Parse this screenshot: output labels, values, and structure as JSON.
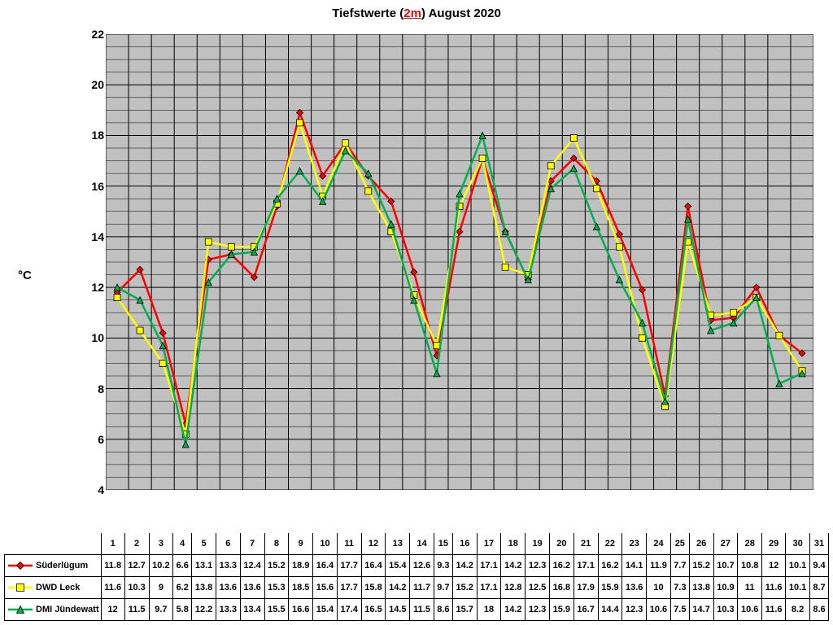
{
  "title_prefix": "Tiefstwerte (",
  "title_highlight": "2m",
  "title_suffix": ") August 2020",
  "ylabel": "°C",
  "ylim": [
    4,
    22
  ],
  "ytick_step": 2,
  "y_minor_per_major": 4,
  "x_categories": [
    "1",
    "2",
    "3",
    "4",
    "5",
    "6",
    "7",
    "8",
    "9",
    "10",
    "11",
    "12",
    "13",
    "14",
    "15",
    "16",
    "17",
    "18",
    "19",
    "20",
    "21",
    "22",
    "23",
    "24",
    "25",
    "26",
    "27",
    "28",
    "29",
    "30",
    "31"
  ],
  "plot_background": "#c0c0c0",
  "grid_color": "#000000",
  "minor_grid_color": "#000000",
  "series": [
    {
      "name": "Süderlügum",
      "color": "#ff0000",
      "marker": "diamond",
      "values": [
        11.8,
        12.7,
        10.2,
        6.6,
        13.1,
        13.3,
        12.4,
        15.2,
        18.9,
        16.4,
        17.7,
        16.4,
        15.4,
        12.6,
        9.3,
        14.2,
        17.1,
        14.2,
        12.3,
        16.2,
        17.1,
        16.2,
        14.1,
        11.9,
        7.7,
        15.2,
        10.7,
        10.8,
        12,
        10.1,
        9.4
      ]
    },
    {
      "name": "DWD Leck",
      "color": "#ffff00",
      "marker": "square",
      "values": [
        11.6,
        10.3,
        9,
        6.2,
        13.8,
        13.6,
        13.6,
        15.3,
        18.5,
        15.6,
        17.7,
        15.8,
        14.2,
        11.7,
        9.7,
        15.2,
        17.1,
        12.8,
        12.5,
        16.8,
        17.9,
        15.9,
        13.6,
        10,
        7.3,
        13.8,
        10.9,
        11,
        11.6,
        10.1,
        8.7
      ]
    },
    {
      "name": "DMI Jündewatt",
      "color": "#00b050",
      "marker": "triangle",
      "values": [
        12,
        11.5,
        9.7,
        5.8,
        12.2,
        13.3,
        13.4,
        15.5,
        16.6,
        15.4,
        17.4,
        16.5,
        14.5,
        11.5,
        8.6,
        15.7,
        18,
        14.2,
        12.3,
        15.9,
        16.7,
        14.4,
        12.3,
        10.6,
        7.5,
        14.7,
        10.3,
        10.6,
        11.6,
        8.2,
        8.6
      ]
    }
  ],
  "line_width": 2.5,
  "marker_size": 8
}
